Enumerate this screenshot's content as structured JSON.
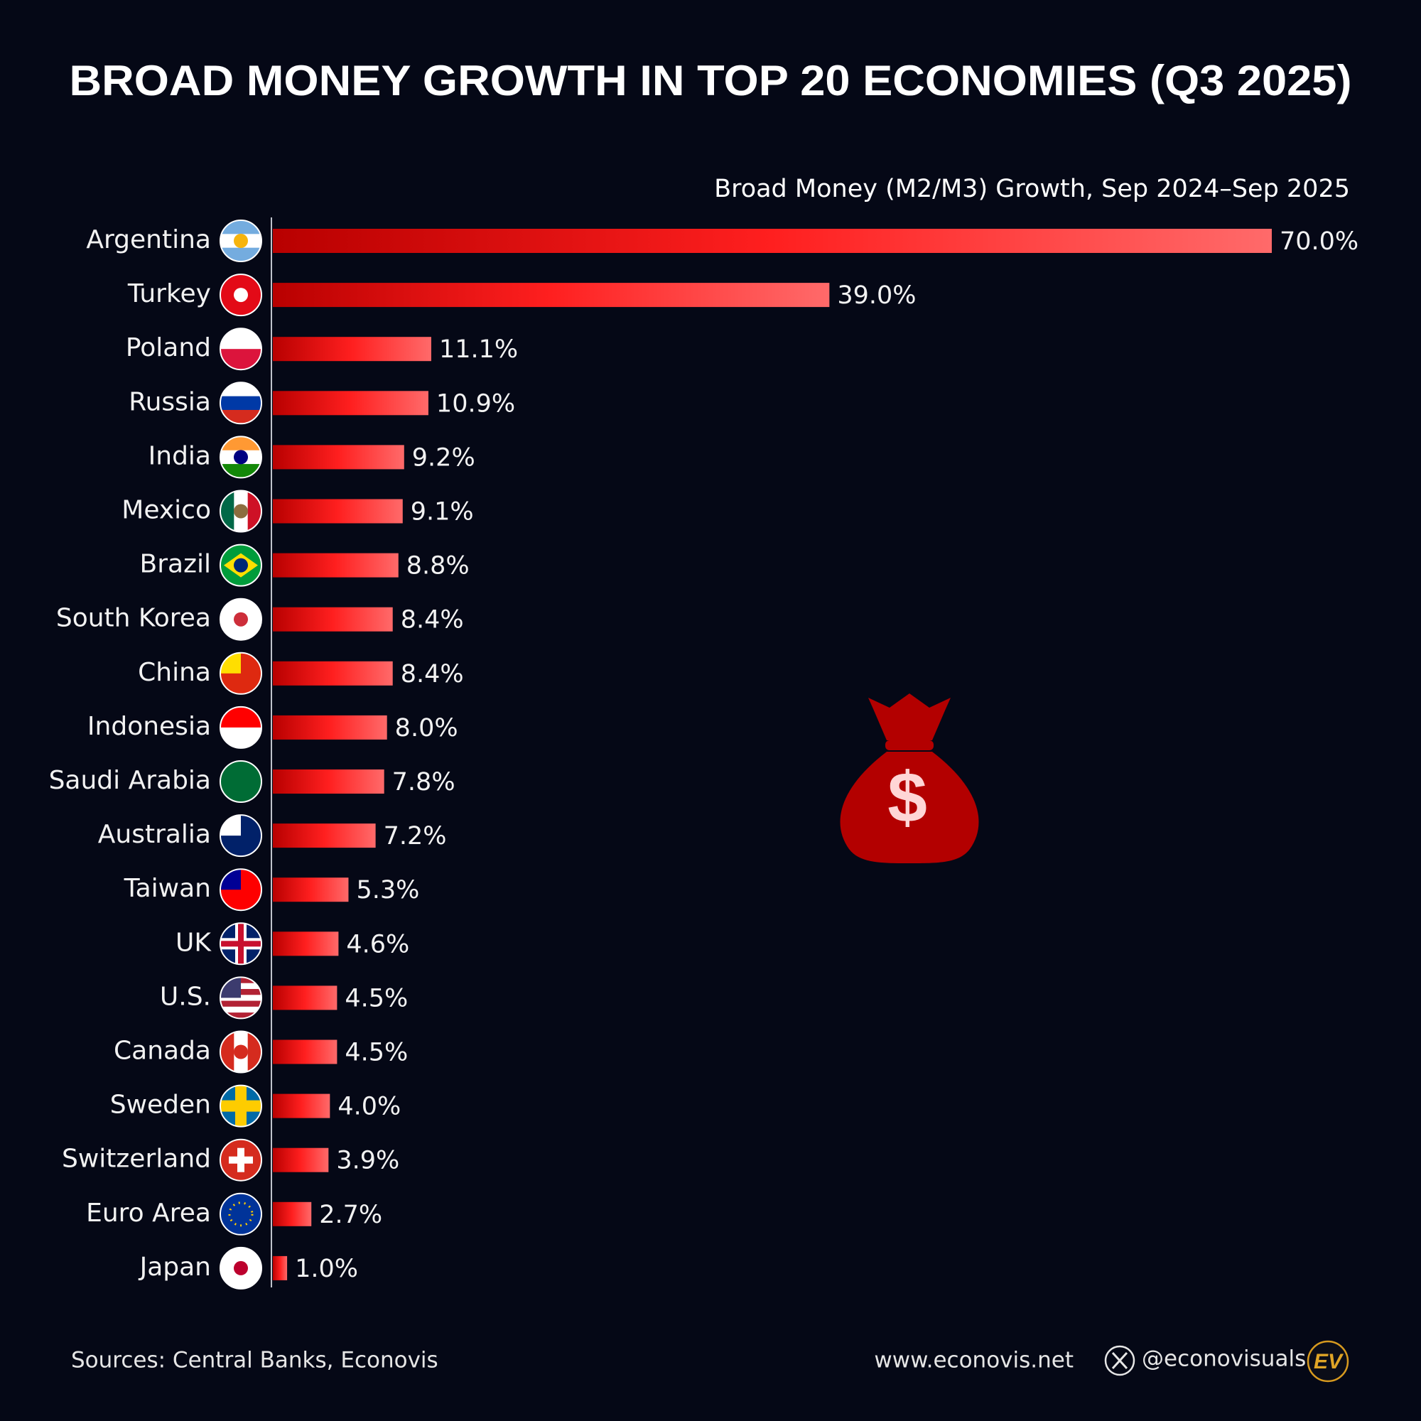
{
  "chart_data": {
    "type": "bar",
    "orientation": "horizontal",
    "title": "BROAD MONEY GROWTH IN TOP 20 ECONOMIES (Q3 2025)",
    "subtitle": "Broad Money (M2/M3) Growth, Sep 2024–Sep 2025",
    "categories": [
      "Argentina",
      "Turkey",
      "Poland",
      "Russia",
      "India",
      "Mexico",
      "Brazil",
      "South Korea",
      "China",
      "Indonesia",
      "Saudi Arabia",
      "Australia",
      "Taiwan",
      "UK",
      "U.S.",
      "Canada",
      "Sweden",
      "Switzerland",
      "Euro Area",
      "Japan"
    ],
    "values": [
      70.0,
      39.0,
      11.1,
      10.9,
      9.2,
      9.1,
      8.8,
      8.4,
      8.4,
      8.0,
      7.8,
      7.2,
      5.3,
      4.6,
      4.5,
      4.5,
      4.0,
      3.9,
      2.7,
      1.0
    ],
    "value_labels": [
      "70.0%",
      "39.0%",
      "11.1%",
      "10.9%",
      "9.2%",
      "9.1%",
      "8.8%",
      "8.4%",
      "8.4%",
      "8.0%",
      "7.8%",
      "7.2%",
      "5.3%",
      "4.6%",
      "4.5%",
      "4.5%",
      "4.0%",
      "3.9%",
      "2.7%",
      "1.0%"
    ],
    "color": "#ff1f1f",
    "source": "Sources: Central Banks, Econovis",
    "website": "www.econovis.net",
    "handle": "@econovisuals",
    "logo": "EV"
  }
}
